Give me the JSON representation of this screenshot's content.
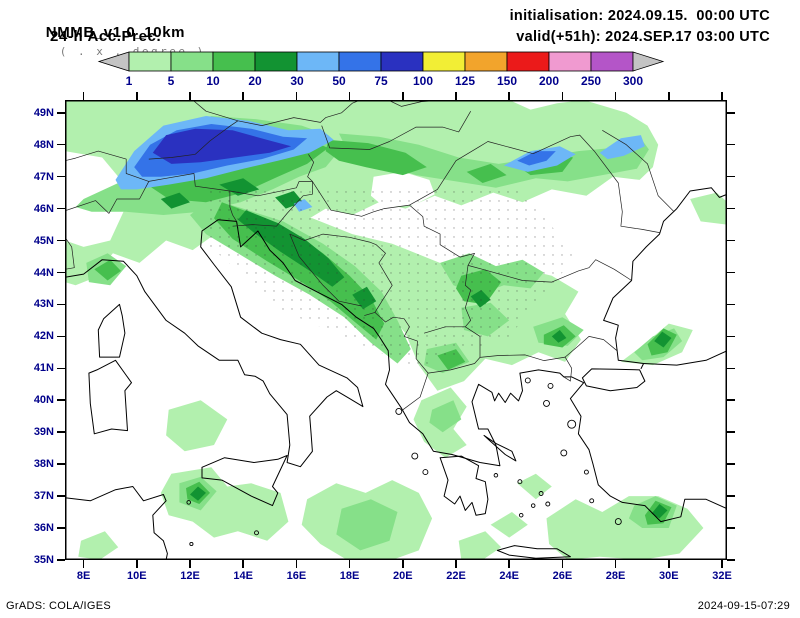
{
  "header": {
    "title": "NMMB_v1.0_10km",
    "grid_note": "( . x . degree )",
    "product": "24-h Acc.Prec.",
    "init": "initialisation: 2024.09.15.  00:00 UTC",
    "valid": "valid(+51h): 2024.SEP.17 03:00 UTC"
  },
  "colorbar": {
    "ticks": [
      "1",
      "5",
      "10",
      "20",
      "30",
      "50",
      "75",
      "100",
      "125",
      "150",
      "200",
      "250",
      "300"
    ],
    "cell_colors": [
      "#b2f0ae",
      "#86e089",
      "#46bf4e",
      "#129332",
      "#6db7f7",
      "#3473e8",
      "#2a31c0",
      "#f2ee35",
      "#f2a42c",
      "#eb1a1a",
      "#f09ad0",
      "#b455c8"
    ],
    "arrow_left_color": "#c4c4c4",
    "arrow_right_color": "#c4c4c4",
    "label_color": "#00008b"
  },
  "map": {
    "lat_labels": [
      "49N",
      "48N",
      "47N",
      "46N",
      "45N",
      "44N",
      "43N",
      "42N",
      "41N",
      "40N",
      "39N",
      "38N",
      "37N",
      "36N",
      "35N"
    ],
    "lon_labels": [
      "8E",
      "10E",
      "12E",
      "14E",
      "16E",
      "18E",
      "20E",
      "22E",
      "24E",
      "26E",
      "28E",
      "30E",
      "32E"
    ],
    "axis_label_color": "#00008b",
    "lat_range": [
      "35N",
      "49N"
    ],
    "lon_range": [
      "8E",
      "32E"
    ]
  },
  "footer": {
    "left": "GrADS: COLA/IGES",
    "right": "2024-09-15-07:29"
  }
}
